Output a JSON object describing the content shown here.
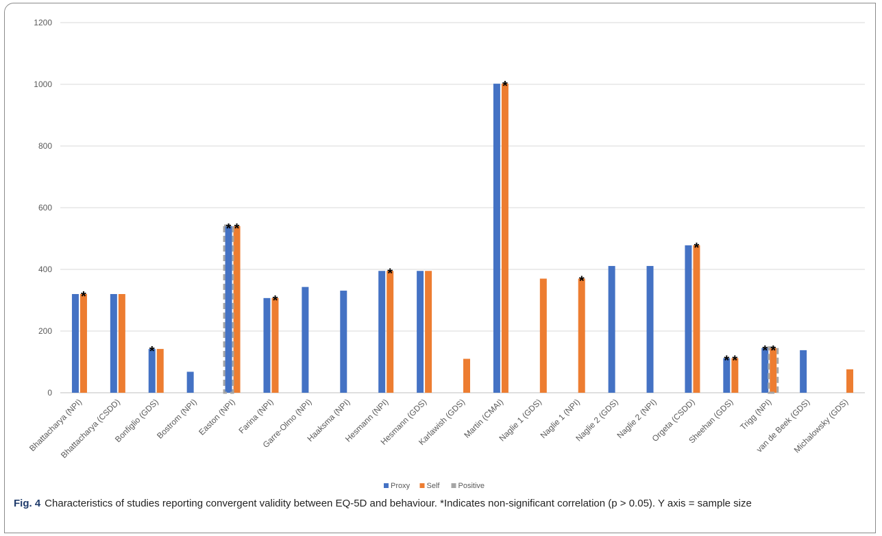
{
  "chart_data": {
    "type": "bar",
    "categories": [
      "Bhattacharya (NPI)",
      "Bhattacharya (CSDD)",
      "Bonfiglio (GDS)",
      "Bostrom (NPI)",
      "Easton (NPI)",
      "Farina (NPI)",
      "Garre-Olmo (NPI)",
      "Haaksma (NPI)",
      "Hesmann (NPI)",
      "Hesmann (GDS)",
      "Karlawish (GDS)",
      "Martin (CMAI)",
      "Naglie 1 (GDS)",
      "Naglie 1 (NPI)",
      "Naglie 2 (GDS)",
      "Naglie 2 (NPI)",
      "Orgeta (CSDD)",
      "Sheehan (GDS)",
      "Trigg (NPI)",
      "van de Beek (GDS)",
      "Michalowsky (GDS)"
    ],
    "series": [
      {
        "name": "Proxy",
        "color": "#4472c4",
        "values": [
          320,
          320,
          142,
          68,
          540,
          307,
          343,
          331,
          395,
          395,
          null,
          1002,
          null,
          null,
          411,
          411,
          478,
          112,
          145,
          138,
          null
        ]
      },
      {
        "name": "Self",
        "color": "#ed7d31",
        "values": [
          320,
          320,
          142,
          null,
          540,
          307,
          null,
          null,
          395,
          395,
          110,
          1002,
          370,
          370,
          null,
          null,
          478,
          112,
          145,
          null,
          76
        ]
      }
    ],
    "legend_positive": {
      "name": "Positive",
      "color": "#a5a5a5"
    },
    "positive_outlines": [
      {
        "category": "Easton (NPI)",
        "series": "Proxy"
      },
      {
        "category": "Trigg (NPI)",
        "series": "Self"
      }
    ],
    "nonsignificant_markers": [
      {
        "category": "Bhattacharya (NPI)",
        "series": "Self"
      },
      {
        "category": "Bonfiglio (GDS)",
        "series": "Proxy"
      },
      {
        "category": "Easton (NPI)",
        "series": "Proxy"
      },
      {
        "category": "Easton (NPI)",
        "series": "Self"
      },
      {
        "category": "Farina (NPI)",
        "series": "Self"
      },
      {
        "category": "Hesmann (NPI)",
        "series": "Self"
      },
      {
        "category": "Martin (CMAI)",
        "series": "Self"
      },
      {
        "category": "Naglie 1 (NPI)",
        "series": "Self"
      },
      {
        "category": "Orgeta (CSDD)",
        "series": "Self"
      },
      {
        "category": "Sheehan (GDS)",
        "series": "Proxy"
      },
      {
        "category": "Sheehan (GDS)",
        "series": "Self"
      },
      {
        "category": "Trigg (NPI)",
        "series": "Proxy"
      },
      {
        "category": "Trigg (NPI)",
        "series": "Self"
      }
    ],
    "marker_symbol": "*",
    "ylim": [
      0,
      1200
    ],
    "yticks": [
      0,
      200,
      400,
      600,
      800,
      1000,
      1200
    ],
    "grid": true,
    "legend_position": "bottom"
  },
  "caption": {
    "label": "Fig. 4",
    "text": "Characteristics of studies reporting convergent validity between EQ-5D and behaviour. *Indicates non-significant correlation (p > 0.05). Y axis = sample size"
  }
}
